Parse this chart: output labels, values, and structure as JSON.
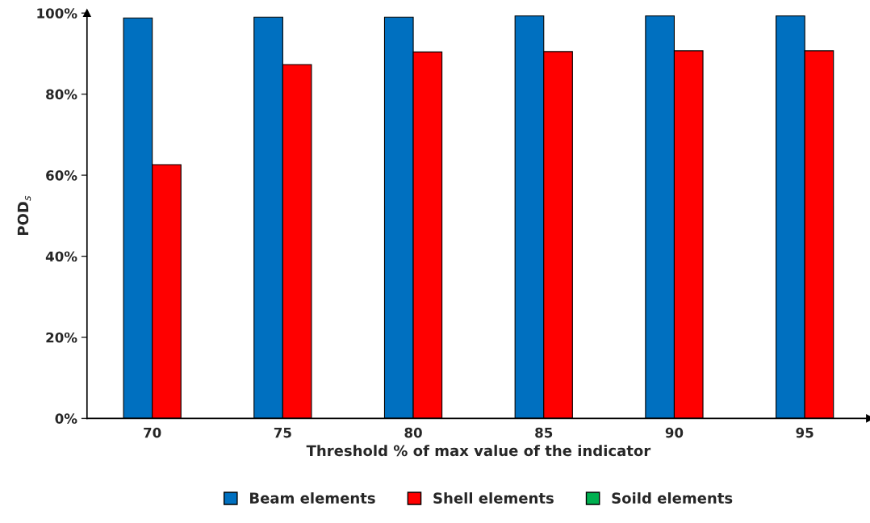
{
  "chart_data": {
    "type": "bar",
    "xlabel": "Threshold % of max value of the indicator",
    "ylabel": "POD$_{s}$",
    "categories": [
      "70",
      "75",
      "80",
      "85",
      "90",
      "95"
    ],
    "series": [
      {
        "name": "Beam elements",
        "color": "#0070c0",
        "values": [
          98.8,
          99.0,
          99.0,
          99.3,
          99.3,
          99.3
        ]
      },
      {
        "name": "Shell elements",
        "color": "#ff0000",
        "values": [
          62.6,
          87.3,
          90.4,
          90.5,
          90.7,
          90.7
        ]
      },
      {
        "name": "Soild elements",
        "color": "#00b050",
        "values": [
          null,
          null,
          null,
          null,
          null,
          null
        ]
      }
    ],
    "ylim": [
      0,
      100
    ],
    "yticks": [
      {
        "value": 0,
        "label": "0%"
      },
      {
        "value": 20,
        "label": "20%"
      },
      {
        "value": 40,
        "label": "40%"
      },
      {
        "value": 60,
        "label": "60%"
      },
      {
        "value": 80,
        "label": "80%"
      },
      {
        "value": 100,
        "label": "100%"
      }
    ],
    "grid": false,
    "legend": "bottom"
  }
}
